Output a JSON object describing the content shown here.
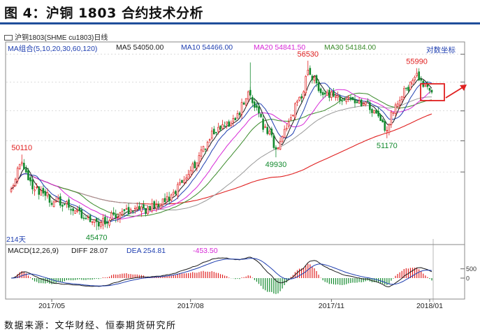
{
  "figure": {
    "title": "图 4：沪铜 1803 合约技术分析",
    "source": "数据来源：文华财经、恒泰期货研究所"
  },
  "toolbar": {
    "instrument": "沪铜1803(SHME cu1803)日线",
    "log_coord_label": "对数坐标",
    "days_label": "214天"
  },
  "ma_legend": {
    "group": "MA组合(5,10,20,30,60,120)",
    "ma5": "MA5  54050.00",
    "ma10": "MA10  54466.00",
    "ma20": "MA20  54841.50",
    "ma30": "MA30  54184.00"
  },
  "macd_legend": {
    "name": "MACD(12,26,9)",
    "diff": "DIFF   28.07",
    "dea": "DEA   254.81",
    "macd": "-453.50"
  },
  "colors": {
    "up": "#e02020",
    "down": "#138a2e",
    "ma5": "#1a1a1a",
    "ma10": "#1f3fb0",
    "ma20": "#d627d6",
    "ma30": "#3a8a2a",
    "ma60": "#999999",
    "ma120": "#e02020",
    "annotation": "#e02020"
  },
  "chart_data": [
    {
      "type": "candlestick",
      "title": "沪铜1803(SHME cu1803)日线",
      "log_scale": true,
      "series_names": [
        "MA5",
        "MA10",
        "MA20",
        "MA30",
        "MA60",
        "MA120"
      ],
      "x_ticks": [
        "2017/05",
        "2017/08",
        "2017/11",
        "2018/01"
      ],
      "ylim": [
        44800,
        57700
      ],
      "annotations": [
        {
          "label": "50110",
          "type": "high",
          "date": "2017-04-12",
          "value": 50110
        },
        {
          "label": "45470",
          "type": "low",
          "date": "2017-05-31",
          "value": 45470
        },
        {
          "label": "49930",
          "type": "low",
          "date": "2017-09-26",
          "value": 49930
        },
        {
          "label": "56530",
          "type": "high",
          "date": "2017-10-17",
          "value": 56530
        },
        {
          "label": "51170",
          "type": "low",
          "date": "2017-12-07",
          "value": 51170
        },
        {
          "label": "55990",
          "type": "high",
          "date": "2017-12-27",
          "value": 55990
        }
      ],
      "anchors": [
        {
          "date": "2017-04-05",
          "close": 48200
        },
        {
          "date": "2017-04-12",
          "close": 49500
        },
        {
          "date": "2017-04-20",
          "close": 48000
        },
        {
          "date": "2017-05-02",
          "close": 47200
        },
        {
          "date": "2017-05-15",
          "close": 46800
        },
        {
          "date": "2017-05-31",
          "close": 45800
        },
        {
          "date": "2017-06-15",
          "close": 46500
        },
        {
          "date": "2017-07-03",
          "close": 46700
        },
        {
          "date": "2017-07-20",
          "close": 47500
        },
        {
          "date": "2017-08-03",
          "close": 49500
        },
        {
          "date": "2017-08-15",
          "close": 51500
        },
        {
          "date": "2017-08-30",
          "close": 52500
        },
        {
          "date": "2017-09-08",
          "close": 54300
        },
        {
          "date": "2017-09-18",
          "close": 52000
        },
        {
          "date": "2017-09-26",
          "close": 50500
        },
        {
          "date": "2017-10-10",
          "close": 53500
        },
        {
          "date": "2017-10-17",
          "close": 55600
        },
        {
          "date": "2017-10-27",
          "close": 54200
        },
        {
          "date": "2017-11-10",
          "close": 53800
        },
        {
          "date": "2017-11-24",
          "close": 53500
        },
        {
          "date": "2017-12-07",
          "close": 51800
        },
        {
          "date": "2017-12-15",
          "close": 53800
        },
        {
          "date": "2017-12-27",
          "close": 55500
        },
        {
          "date": "2018-01-05",
          "close": 54200
        }
      ]
    },
    {
      "type": "macd",
      "title": "MACD(12,26,9)",
      "series_names": [
        "DIFF",
        "DEA",
        "MACD"
      ],
      "latest": {
        "DIFF": 28.07,
        "DEA": 254.81,
        "MACD": -453.5
      },
      "y_ticks": [
        500,
        0
      ]
    }
  ]
}
